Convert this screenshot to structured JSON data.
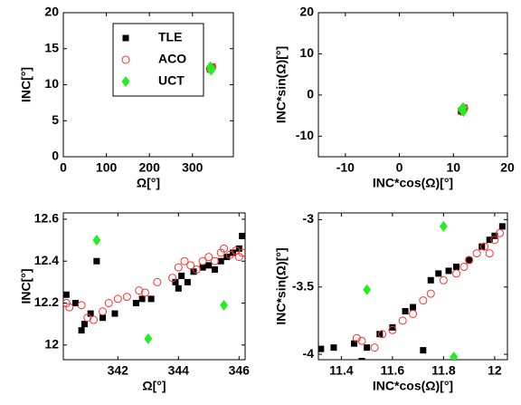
{
  "chart_data": [
    {
      "type": "scatter",
      "xlabel": "Ω[°]",
      "ylabel": "INC[°]",
      "xlim": [
        0,
        395
      ],
      "ylim": [
        0,
        20
      ],
      "xticks": [
        0,
        100,
        200,
        300
      ],
      "yticks": [
        0,
        5,
        10,
        15,
        20
      ],
      "legend": "upper left",
      "series": [
        {
          "name": "TLE",
          "color": "#000000",
          "marker": "square",
          "x": [
            340.5,
            341.5,
            343,
            344.5,
            346
          ],
          "values": [
            12.2,
            12.1,
            12.2,
            12.35,
            12.5
          ]
        },
        {
          "name": "ACO",
          "color": "#ff3030",
          "marker": "circle",
          "x": [
            340.5,
            342,
            343.5,
            345,
            346
          ],
          "values": [
            12.2,
            12.2,
            12.3,
            12.4,
            12.45
          ]
        },
        {
          "name": "UCT",
          "color": "#22ee22",
          "marker": "diamond",
          "x": [
            341.3,
            343,
            345.5
          ],
          "values": [
            12.5,
            12.03,
            12.19
          ]
        }
      ]
    },
    {
      "type": "scatter",
      "xlabel": "INC*cos(Ω)[°]",
      "ylabel": "INC*sin(Ω)[°]",
      "xlim": [
        -15,
        20
      ],
      "ylim": [
        -15,
        20
      ],
      "xticks": [
        -10,
        0,
        10,
        20
      ],
      "yticks": [
        -10,
        0,
        10,
        20
      ],
      "series": [
        {
          "color": "#000000",
          "marker": "square",
          "x": [
            11.4,
            11.6,
            11.8,
            12.0
          ],
          "values": [
            -3.95,
            -3.7,
            -3.4,
            -3.1
          ]
        },
        {
          "color": "#ff3030",
          "marker": "circle",
          "x": [
            11.5,
            11.7,
            11.9,
            12.0
          ],
          "values": [
            -4.0,
            -3.6,
            -3.3,
            -3.15
          ]
        },
        {
          "color": "#22ee22",
          "marker": "diamond",
          "x": [
            11.5,
            11.8,
            11.84
          ],
          "values": [
            -3.52,
            -3.05,
            -4.02
          ]
        }
      ]
    },
    {
      "type": "scatter",
      "xlabel": "Ω[°]",
      "ylabel": "INC[°]",
      "xlim": [
        340.2,
        346.2
      ],
      "ylim": [
        11.93,
        12.63
      ],
      "xticks": [
        342,
        344,
        346
      ],
      "yticks": [
        12,
        12.2,
        12.4,
        12.6
      ],
      "series": [
        {
          "color": "#000000",
          "marker": "square",
          "x": [
            340.3,
            340.6,
            340.8,
            340.9,
            341.1,
            341.3,
            341.5,
            341.9,
            342.6,
            342.8,
            343.1,
            343.9,
            344.0,
            344.1,
            344.3,
            344.5,
            344.8,
            345.0,
            345.2,
            345.4,
            345.6,
            345.8,
            346.0,
            346.1
          ],
          "values": [
            12.24,
            12.2,
            12.07,
            12.1,
            12.15,
            12.4,
            12.13,
            12.15,
            12.2,
            12.22,
            12.22,
            12.3,
            12.27,
            12.33,
            12.3,
            12.35,
            12.37,
            12.38,
            12.36,
            12.4,
            12.42,
            12.44,
            12.46,
            12.52
          ]
        },
        {
          "color": "#ff3030",
          "marker": "circle",
          "x": [
            340.3,
            340.4,
            340.8,
            341.0,
            341.2,
            341.5,
            341.7,
            342.0,
            342.3,
            342.7,
            342.9,
            343.3,
            343.8,
            344.0,
            344.2,
            344.4,
            344.6,
            344.8,
            345.0,
            345.2,
            345.4,
            345.5,
            345.7,
            345.9,
            346.0,
            346.1
          ],
          "values": [
            12.2,
            12.18,
            12.19,
            12.13,
            12.12,
            12.16,
            12.2,
            12.22,
            12.23,
            12.26,
            12.25,
            12.3,
            12.32,
            12.37,
            12.4,
            12.38,
            12.36,
            12.4,
            12.42,
            12.4,
            12.44,
            12.46,
            12.43,
            12.45,
            12.42,
            12.44
          ]
        },
        {
          "color": "#22ee22",
          "marker": "diamond",
          "x": [
            341.3,
            343.0,
            345.5
          ],
          "values": [
            12.5,
            12.03,
            12.19
          ]
        }
      ]
    },
    {
      "type": "scatter",
      "xlabel": "INC*cos(Ω)[°]",
      "ylabel": "INC*sin(Ω)[°]",
      "xlim": [
        11.31,
        12.05
      ],
      "ylim": [
        -4.04,
        -2.95
      ],
      "xticks": [
        11.4,
        11.6,
        11.8,
        12
      ],
      "yticks": [
        -4,
        -3.5,
        -3
      ],
      "series": [
        {
          "color": "#000000",
          "marker": "square",
          "x": [
            11.32,
            11.37,
            11.45,
            11.48,
            11.5,
            11.51,
            11.55,
            11.6,
            11.65,
            11.68,
            11.72,
            11.75,
            11.78,
            11.82,
            11.85,
            11.9,
            11.95,
            11.98,
            12.0,
            12.03
          ],
          "values": [
            -3.96,
            -3.95,
            -3.92,
            -4.05,
            -3.95,
            -4.1,
            -3.85,
            -3.8,
            -3.68,
            -3.65,
            -3.97,
            -3.45,
            -3.4,
            -3.38,
            -3.35,
            -3.3,
            -3.2,
            -3.15,
            -3.12,
            -3.05
          ]
        },
        {
          "color": "#ff3030",
          "marker": "circle",
          "x": [
            11.46,
            11.48,
            11.5,
            11.52,
            11.53,
            11.56,
            11.6,
            11.64,
            11.68,
            11.72,
            11.75,
            11.8,
            11.85,
            11.88,
            11.9,
            11.93,
            11.96,
            11.98,
            12.0,
            12.02
          ],
          "values": [
            -3.88,
            -3.9,
            -4.08,
            -4.1,
            -3.95,
            -3.85,
            -3.82,
            -3.75,
            -3.7,
            -3.6,
            -3.55,
            -3.45,
            -3.4,
            -3.35,
            -3.3,
            -3.25,
            -3.2,
            -3.25,
            -3.15,
            -3.1
          ]
        },
        {
          "color": "#22ee22",
          "marker": "diamond",
          "x": [
            11.5,
            11.8,
            11.84
          ],
          "values": [
            -3.52,
            -3.05,
            -4.02
          ]
        }
      ]
    }
  ]
}
